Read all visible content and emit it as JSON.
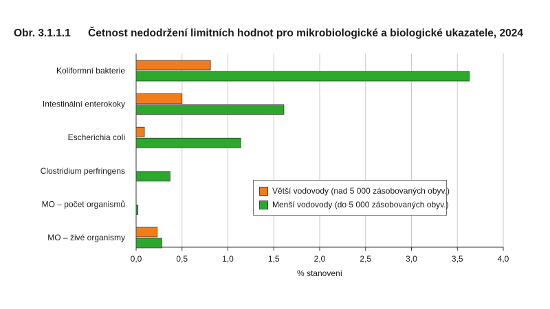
{
  "figure": {
    "number": "Obr. 3.1.1.1",
    "title": "Četnost nedodržení limitních hodnot pro mikrobiologické a biologické ukazatele, 2024"
  },
  "chart_data": {
    "type": "bar",
    "orientation": "horizontal",
    "categories": [
      "Koliformní bakterie",
      "Intestinální enterokoky",
      "Escherichia coli",
      "Clostridium perfringens",
      "MO – počet organismů",
      "MO – živé organismy"
    ],
    "series": [
      {
        "name": "Větší vodovody (nad 5 000 zásobovaných obyv.)",
        "color": "#f07d1a",
        "values": [
          0.81,
          0.5,
          0.09,
          null,
          null,
          0.23
        ]
      },
      {
        "name": "Menší vodovody (do 5 000 zásobovaných obyv.)",
        "color": "#2ca82c",
        "values": [
          3.63,
          1.61,
          1.14,
          0.37,
          0.02,
          0.28
        ]
      }
    ],
    "xlabel": "% stanovení",
    "xlim": [
      0,
      4
    ],
    "xticks": [
      "0,0",
      "0,5",
      "1,0",
      "1,5",
      "2,0",
      "2,5",
      "3,0",
      "3,5",
      "4,0"
    ],
    "grid": true,
    "legend_position": "inside-right"
  }
}
